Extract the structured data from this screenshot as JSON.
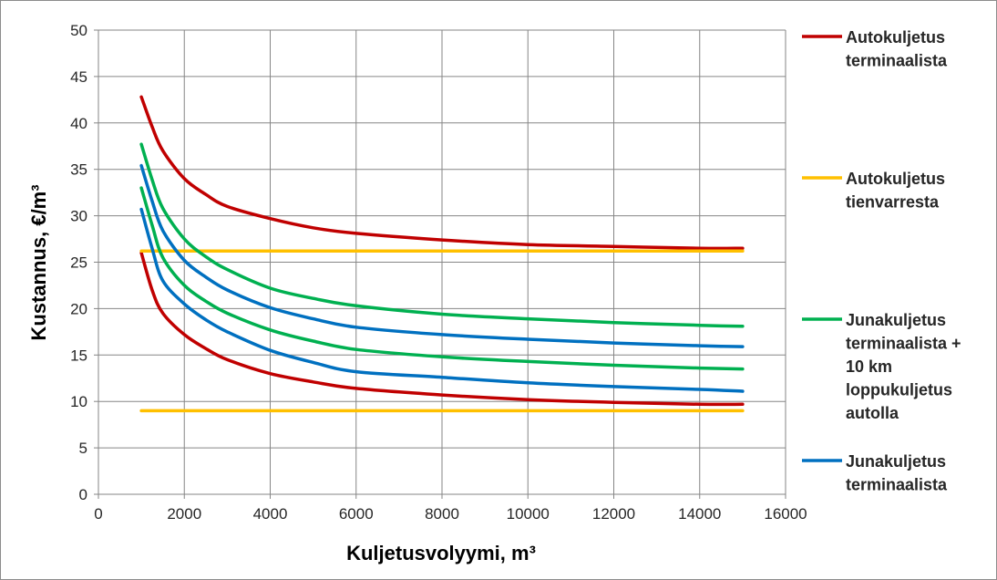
{
  "chart_data": {
    "type": "line",
    "title": "",
    "xlabel": "Kuljetusvolyymi, m³",
    "ylabel": "Kustannus, €/m³",
    "xlim": [
      0,
      16000
    ],
    "ylim": [
      0,
      50
    ],
    "x_ticks": [
      "0",
      "2000",
      "4000",
      "6000",
      "8000",
      "10000",
      "12000",
      "14000",
      "16000"
    ],
    "y_ticks": [
      "0",
      "5",
      "10",
      "15",
      "20",
      "25",
      "30",
      "35",
      "40",
      "45",
      "50"
    ],
    "grid": true,
    "legend_position": "right",
    "x": [
      1000,
      1250,
      1500,
      2000,
      2500,
      3000,
      4000,
      5000,
      6000,
      8000,
      10000,
      12000,
      14000,
      15000
    ],
    "series": [
      {
        "name": "Autokuljetus terminaalista",
        "color": "#c00000",
        "ranges": [
          {
            "values": [
              42.8,
              39.6,
              37.0,
              34.0,
              32.3,
              31.0,
              29.7,
              28.7,
              28.1,
              27.4,
              26.9,
              26.7,
              26.5,
              26.5
            ]
          },
          {
            "values": [
              26.0,
              22.0,
              19.5,
              17.2,
              15.7,
              14.5,
              13.0,
              12.1,
              11.4,
              10.7,
              10.2,
              9.9,
              9.7,
              9.7
            ]
          }
        ]
      },
      {
        "name": "Autokuljetus tienvarresta",
        "color": "#ffc000",
        "ranges": [
          {
            "values": [
              26.2,
              26.2,
              26.2,
              26.2,
              26.2,
              26.2,
              26.2,
              26.2,
              26.2,
              26.2,
              26.2,
              26.2,
              26.2,
              26.2
            ]
          },
          {
            "values": [
              9.0,
              9.0,
              9.0,
              9.0,
              9.0,
              9.0,
              9.0,
              9.0,
              9.0,
              9.0,
              9.0,
              9.0,
              9.0,
              9.0
            ]
          }
        ]
      },
      {
        "name": "Junakuljetus terminaalista + 10 km loppukuljetus autolla",
        "color": "#00b050",
        "ranges": [
          {
            "values": [
              37.7,
              33.9,
              30.8,
              27.5,
              25.6,
              24.2,
              22.2,
              21.1,
              20.3,
              19.4,
              18.9,
              18.5,
              18.2,
              18.1
            ]
          },
          {
            "values": [
              33.0,
              29.0,
              25.5,
              22.5,
              20.8,
              19.5,
              17.7,
              16.5,
              15.6,
              14.8,
              14.3,
              13.9,
              13.6,
              13.5
            ]
          }
        ]
      },
      {
        "name": "Junakuljetus terminaalista",
        "color": "#0070c0",
        "ranges": [
          {
            "values": [
              35.4,
              31.6,
              28.4,
              25.2,
              23.4,
              22.0,
              20.1,
              18.9,
              18.0,
              17.2,
              16.7,
              16.3,
              16.0,
              15.9
            ]
          },
          {
            "values": [
              30.7,
              26.5,
              23.0,
              20.5,
              18.8,
              17.5,
              15.5,
              14.2,
              13.2,
              12.6,
              12.0,
              11.6,
              11.3,
              11.1
            ]
          }
        ]
      }
    ],
    "legend_lines": [
      [
        "Autokuljetus",
        "terminaalista"
      ],
      [
        "Autokuljetus",
        "tienvarresta"
      ],
      [
        "Junakuljetus",
        "terminaalista +",
        "10 km",
        "loppukuljetus",
        "autolla"
      ],
      [
        "Junakuljetus",
        "terminaalista"
      ]
    ]
  }
}
